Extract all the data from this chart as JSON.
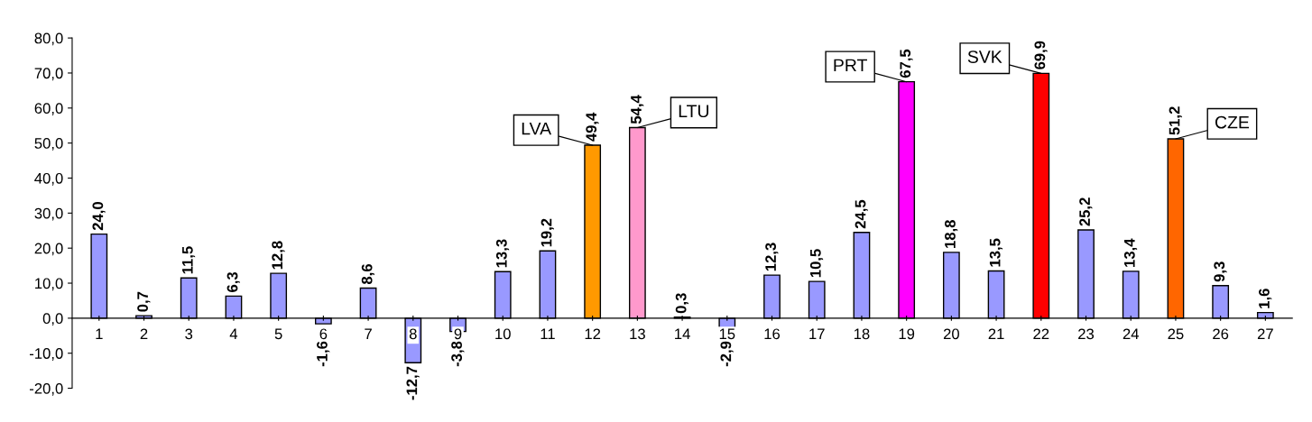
{
  "chart_data": {
    "type": "bar",
    "categories": [
      "1",
      "2",
      "3",
      "4",
      "5",
      "6",
      "7",
      "8",
      "9",
      "10",
      "11",
      "12",
      "13",
      "14",
      "15",
      "16",
      "17",
      "18",
      "19",
      "20",
      "21",
      "22",
      "23",
      "24",
      "25",
      "26",
      "27"
    ],
    "values": [
      24.0,
      0.7,
      11.5,
      6.3,
      12.8,
      -1.6,
      8.6,
      -12.7,
      -3.8,
      13.3,
      19.2,
      49.4,
      54.4,
      0.3,
      -2.9,
      12.3,
      10.5,
      24.5,
      67.5,
      18.8,
      13.5,
      69.9,
      25.2,
      13.4,
      51.2,
      9.3,
      1.6
    ],
    "colors": [
      "#9999ff",
      "#9999ff",
      "#9999ff",
      "#9999ff",
      "#9999ff",
      "#9999ff",
      "#9999ff",
      "#9999ff",
      "#9999ff",
      "#9999ff",
      "#9999ff",
      "#ff9900",
      "#ff99cc",
      "#9999ff",
      "#9999ff",
      "#9999ff",
      "#9999ff",
      "#9999ff",
      "#ff00ff",
      "#9999ff",
      "#9999ff",
      "#ff0000",
      "#9999ff",
      "#9999ff",
      "#ff6600",
      "#9999ff",
      "#9999ff"
    ],
    "value_labels": [
      "24,0",
      "0,7",
      "11,5",
      "6,3",
      "12,8",
      "-1,6",
      "8,6",
      "-12,7",
      "-3,8",
      "13,3",
      "19,2",
      "49,4",
      "54,4",
      "0,3",
      "-2,9",
      "12,3",
      "10,5",
      "24,5",
      "67,5",
      "18,8",
      "13,5",
      "69,9",
      "25,2",
      "13,4",
      "51,2",
      "9,3",
      "1,6"
    ],
    "ylim": [
      -20,
      80
    ],
    "yticks": [
      {
        "value": -20,
        "label": "-20,0"
      },
      {
        "value": -10,
        "label": "-10,0"
      },
      {
        "value": 0,
        "label": "0,0"
      },
      {
        "value": 10,
        "label": "10,0"
      },
      {
        "value": 20,
        "label": "20,0"
      },
      {
        "value": 30,
        "label": "30,0"
      },
      {
        "value": 40,
        "label": "40,0"
      },
      {
        "value": 50,
        "label": "50,0"
      },
      {
        "value": 60,
        "label": "60,0"
      },
      {
        "value": 70,
        "label": "70,0"
      },
      {
        "value": 80,
        "label": "80,0"
      }
    ],
    "annotations": [
      {
        "text": "LVA",
        "x": "12",
        "y": 49.4
      },
      {
        "text": "LTU",
        "x": "13",
        "y": 54.4
      },
      {
        "text": "PRT",
        "x": "19",
        "y": 67.5
      },
      {
        "text": "SVK",
        "x": "22",
        "y": 69.9
      },
      {
        "text": "CZE",
        "x": "25",
        "y": 51.2
      }
    ],
    "grid": false,
    "legend": false
  }
}
